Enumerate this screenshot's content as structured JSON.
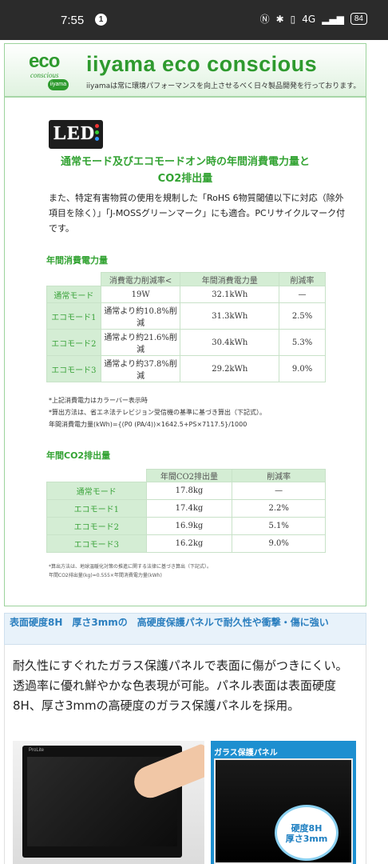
{
  "status_bar": {
    "time": "7:55",
    "notification_count": "1",
    "network": "4G",
    "battery": "84"
  },
  "eco": {
    "logo_word": "eco",
    "logo_sub": "conscious",
    "logo_badge": "iiyama",
    "title": "iiyama eco conscious",
    "subtitle": "iiyamaは常に環境パフォーマンスを向上させるべく日々製品開発を行っております。",
    "led_label": "LED",
    "heading_line1": "通常モード及びエコモードオン時の年間消費電力量と",
    "heading_line2": "CO2排出量",
    "intro": "また、特定有害物質の使用を規制した「RoHS 6物質閾値以下に対応（除外項目を除く）」「J-MOSSグリーンマーク」にも適合。PCリサイクルマーク付です。",
    "power_heading": "年間消費電力量",
    "power_table": {
      "headers": [
        "",
        "消費電力削減率<",
        "年間消費電力量",
        "削減率"
      ],
      "rows": [
        {
          "mode": "通常モード",
          "reduction": "19W",
          "annual": "32.1kWh",
          "rate": "—"
        },
        {
          "mode": "エコモード1",
          "reduction": "通常より約10.8%削減",
          "annual": "31.3kWh",
          "rate": "2.5%"
        },
        {
          "mode": "エコモード2",
          "reduction": "通常より約21.6%削減",
          "annual": "30.4kWh",
          "rate": "5.3%"
        },
        {
          "mode": "エコモード3",
          "reduction": "通常より約37.8%削減",
          "annual": "29.2kWh",
          "rate": "9.0%"
        }
      ]
    },
    "power_notes": [
      "*上記消費電力はカラーバー表示時",
      "*算出方法は、省エネ法テレビジョン受信機の基準に基づき算出（下記式）。",
      "年間消費電力量(kWh)={(P0 (PA/4))×1642.5+PS×7117.5}/1000"
    ],
    "co2_heading": "年間CO2排出量",
    "co2_table": {
      "headers": [
        "",
        "年間CO2排出量",
        "削減率"
      ],
      "rows": [
        {
          "mode": "通常モード",
          "amount": "17.8kg",
          "rate": "—"
        },
        {
          "mode": "エコモード1",
          "amount": "17.4kg",
          "rate": "2.2%"
        },
        {
          "mode": "エコモード2",
          "amount": "16.9kg",
          "rate": "5.1%"
        },
        {
          "mode": "エコモード3",
          "amount": "16.2kg",
          "rate": "9.0%"
        }
      ]
    },
    "co2_notes": [
      "*算出方法は、地球温暖化対策の推進に関する法律に基づき算出（下記式）。",
      "年間CO2排出量(kg)=0.555×年間消費電力量(kWh)"
    ]
  },
  "hardness": {
    "title": "表面硬度8H　厚さ3mmの　高硬度保護パネルで耐久性や衝撃・傷に強い",
    "body": "耐久性にすぐれたガラス保護パネルで表面に傷がつきにくい。透過率に優れ鮮やかな色表現が可能。パネル表面は表面硬度8H、厚さ3mmの高硬度のガラス保護パネルを採用。",
    "glass_label": "ガラス保護パネル",
    "bubble_line1": "硬度8H",
    "bubble_line2": "厚さ3mm",
    "monitor_brand": "ProLite"
  }
}
